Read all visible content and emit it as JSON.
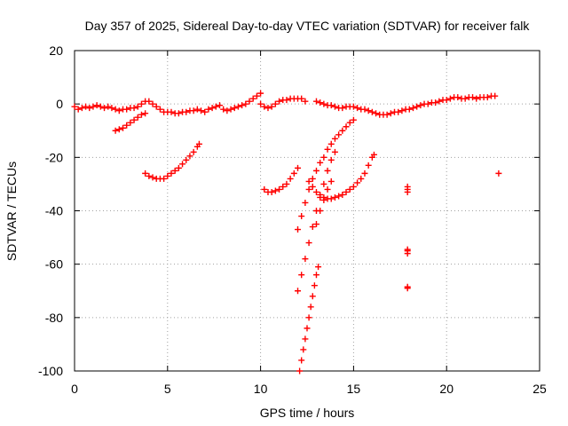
{
  "chart_data": {
    "type": "scatter",
    "title": "Day 357 of 2025, Sidereal Day-to-day VTEC variation (SDTVAR) for receiver falk",
    "xlabel": "GPS time / hours",
    "ylabel": "SDTVAR / TECUs",
    "xlim": [
      0,
      25
    ],
    "ylim": [
      -100,
      20
    ],
    "xticks": [
      0,
      5,
      10,
      15,
      20,
      25
    ],
    "yticks": [
      -100,
      -80,
      -60,
      -40,
      -20,
      0,
      20
    ],
    "xtick_labels": [
      "0",
      "5",
      "10",
      "15",
      "20",
      "25"
    ],
    "ytick_labels": [
      "-100",
      "-80",
      "-60",
      "-40",
      "-20",
      "0",
      "20"
    ],
    "grid": true,
    "marker": "+",
    "color": "#ff0000",
    "series": [
      {
        "values": [
          [
            0.0,
            -1
          ],
          [
            0.2,
            -2
          ],
          [
            0.4,
            -1.5
          ],
          [
            0.6,
            -1
          ],
          [
            0.8,
            -1.5
          ],
          [
            1.0,
            -1
          ],
          [
            1.2,
            -0.5
          ],
          [
            1.4,
            -1
          ],
          [
            1.6,
            -1.5
          ],
          [
            1.8,
            -1
          ],
          [
            2.0,
            -1.5
          ],
          [
            2.2,
            -2
          ],
          [
            2.4,
            -2.5
          ],
          [
            2.6,
            -2
          ],
          [
            2.8,
            -2
          ],
          [
            3.0,
            -1.5
          ],
          [
            3.2,
            -1.5
          ],
          [
            3.4,
            -1
          ],
          [
            3.6,
            0
          ],
          [
            3.8,
            1
          ],
          [
            4.0,
            1
          ],
          [
            4.2,
            0
          ],
          [
            4.4,
            -1
          ],
          [
            4.6,
            -2
          ],
          [
            4.8,
            -3
          ],
          [
            5.0,
            -3
          ],
          [
            5.2,
            -3
          ],
          [
            5.4,
            -3.5
          ],
          [
            5.6,
            -3.5
          ],
          [
            5.8,
            -3
          ],
          [
            6.0,
            -3
          ],
          [
            6.2,
            -2.5
          ],
          [
            6.4,
            -2.5
          ],
          [
            6.6,
            -2
          ],
          [
            6.8,
            -2.5
          ],
          [
            7.0,
            -3
          ],
          [
            7.2,
            -2
          ],
          [
            7.4,
            -1.5
          ],
          [
            7.6,
            -1
          ],
          [
            7.8,
            -0.5
          ],
          [
            8.0,
            -2
          ],
          [
            8.2,
            -2.5
          ],
          [
            8.4,
            -2
          ],
          [
            8.6,
            -1.5
          ],
          [
            8.8,
            -1
          ],
          [
            9.0,
            -0.5
          ],
          [
            9.2,
            0
          ],
          [
            9.4,
            1
          ],
          [
            9.6,
            2
          ],
          [
            9.8,
            3
          ],
          [
            10.0,
            4
          ],
          [
            10.0,
            0
          ],
          [
            10.2,
            -1
          ],
          [
            10.4,
            -1.5
          ],
          [
            10.6,
            -1
          ],
          [
            10.8,
            0
          ],
          [
            11.0,
            1
          ],
          [
            11.2,
            1.5
          ],
          [
            11.4,
            1.5
          ],
          [
            11.6,
            2
          ],
          [
            11.8,
            2
          ],
          [
            12.0,
            2
          ],
          [
            12.2,
            2
          ],
          [
            12.4,
            1
          ],
          [
            13.0,
            1
          ],
          [
            13.2,
            0.5
          ],
          [
            13.4,
            0
          ],
          [
            13.6,
            -0.5
          ],
          [
            13.8,
            -0.5
          ],
          [
            14.0,
            -1
          ],
          [
            14.2,
            -1.5
          ],
          [
            14.4,
            -1.5
          ],
          [
            14.6,
            -1
          ],
          [
            14.8,
            -1
          ],
          [
            15.0,
            -1
          ],
          [
            15.2,
            -1.5
          ],
          [
            15.4,
            -2
          ],
          [
            15.6,
            -2
          ],
          [
            15.8,
            -2.5
          ],
          [
            16.0,
            -3
          ],
          [
            16.2,
            -3.5
          ],
          [
            16.4,
            -4
          ],
          [
            16.6,
            -4
          ],
          [
            16.8,
            -4
          ],
          [
            17.0,
            -3.5
          ],
          [
            17.2,
            -3
          ],
          [
            17.4,
            -3
          ],
          [
            17.6,
            -2.5
          ],
          [
            17.8,
            -2
          ],
          [
            18.0,
            -2
          ],
          [
            18.2,
            -1.5
          ],
          [
            18.4,
            -1
          ],
          [
            18.6,
            -0.5
          ],
          [
            18.8,
            0
          ],
          [
            19.0,
            0
          ],
          [
            19.2,
            0.5
          ],
          [
            19.4,
            0.5
          ],
          [
            19.6,
            1
          ],
          [
            19.8,
            1.5
          ],
          [
            20.0,
            1.5
          ],
          [
            20.2,
            2
          ],
          [
            20.4,
            2.5
          ],
          [
            20.6,
            2.5
          ],
          [
            20.8,
            2
          ],
          [
            21.0,
            2
          ],
          [
            21.2,
            2.5
          ],
          [
            21.4,
            2.5
          ],
          [
            21.6,
            2
          ],
          [
            21.8,
            2.5
          ],
          [
            22.0,
            2.5
          ],
          [
            22.2,
            2.5
          ],
          [
            22.4,
            3
          ],
          [
            22.6,
            3
          ]
        ]
      },
      {
        "values": [
          [
            2.2,
            -10
          ],
          [
            2.4,
            -9.5
          ],
          [
            2.6,
            -9
          ],
          [
            2.8,
            -8
          ],
          [
            3.0,
            -7
          ],
          [
            3.2,
            -6
          ],
          [
            3.4,
            -5
          ],
          [
            3.6,
            -4
          ],
          [
            3.8,
            -3.5
          ]
        ]
      },
      {
        "values": [
          [
            3.8,
            -26
          ],
          [
            4.0,
            -27
          ],
          [
            4.2,
            -27.5
          ],
          [
            4.4,
            -28
          ],
          [
            4.6,
            -28
          ],
          [
            4.8,
            -28
          ],
          [
            5.0,
            -27
          ],
          [
            5.2,
            -26
          ],
          [
            5.4,
            -25
          ],
          [
            5.6,
            -24
          ],
          [
            5.8,
            -22.5
          ],
          [
            6.0,
            -21
          ],
          [
            6.2,
            -19.5
          ],
          [
            6.4,
            -18
          ],
          [
            6.6,
            -16
          ],
          [
            6.7,
            -15
          ]
        ]
      },
      {
        "values": [
          [
            10.2,
            -32
          ],
          [
            10.4,
            -33
          ],
          [
            10.6,
            -33
          ],
          [
            10.8,
            -32.5
          ],
          [
            11.0,
            -32
          ],
          [
            11.2,
            -31
          ],
          [
            11.4,
            -30
          ],
          [
            11.6,
            -28
          ],
          [
            11.8,
            -26
          ],
          [
            12.0,
            -24
          ]
        ]
      },
      {
        "values": [
          [
            12.0,
            -47
          ],
          [
            12.2,
            -42
          ],
          [
            12.4,
            -37
          ],
          [
            12.6,
            -32
          ],
          [
            12.8,
            -28
          ],
          [
            13.0,
            -25
          ],
          [
            13.2,
            -22
          ],
          [
            13.4,
            -20
          ],
          [
            13.6,
            -17
          ],
          [
            13.8,
            -15
          ],
          [
            14.0,
            -13
          ],
          [
            14.2,
            -11.5
          ],
          [
            14.4,
            -10
          ],
          [
            14.6,
            -8.5
          ],
          [
            14.8,
            -7
          ],
          [
            15.0,
            -6
          ]
        ]
      },
      {
        "values": [
          [
            12.0,
            -70
          ],
          [
            12.2,
            -64
          ],
          [
            12.4,
            -58
          ],
          [
            12.6,
            -52
          ],
          [
            12.8,
            -46
          ],
          [
            13.0,
            -40
          ],
          [
            13.2,
            -35
          ],
          [
            13.4,
            -30
          ],
          [
            13.6,
            -25
          ],
          [
            13.8,
            -21
          ],
          [
            14.0,
            -18
          ]
        ]
      },
      {
        "values": [
          [
            12.6,
            -29
          ],
          [
            12.8,
            -31
          ],
          [
            13.0,
            -33
          ],
          [
            13.2,
            -34
          ],
          [
            13.4,
            -35
          ],
          [
            13.6,
            -35.5
          ],
          [
            13.8,
            -35.5
          ],
          [
            14.0,
            -35
          ],
          [
            14.2,
            -34.5
          ],
          [
            14.4,
            -34
          ],
          [
            14.6,
            -33
          ],
          [
            14.8,
            -32
          ],
          [
            15.0,
            -31
          ],
          [
            15.2,
            -29.5
          ],
          [
            15.4,
            -28
          ],
          [
            15.6,
            -26
          ],
          [
            15.8,
            -23
          ],
          [
            16.0,
            -20
          ],
          [
            16.1,
            -19
          ]
        ]
      },
      {
        "values": [
          [
            12.1,
            -100
          ],
          [
            12.2,
            -96
          ],
          [
            12.3,
            -92
          ],
          [
            12.4,
            -88
          ],
          [
            12.5,
            -84
          ],
          [
            12.6,
            -80
          ],
          [
            12.7,
            -76
          ],
          [
            12.8,
            -72
          ],
          [
            12.9,
            -68
          ],
          [
            13.0,
            -64
          ],
          [
            13.1,
            -61
          ]
        ]
      },
      {
        "values": [
          [
            13.0,
            -45
          ],
          [
            13.2,
            -40
          ],
          [
            13.4,
            -36
          ],
          [
            13.6,
            -32
          ],
          [
            13.8,
            -29
          ]
        ]
      },
      {
        "values": [
          [
            17.9,
            -32
          ],
          [
            17.9,
            -33
          ],
          [
            17.9,
            -31
          ],
          [
            17.9,
            -55
          ],
          [
            17.9,
            -56
          ],
          [
            17.9,
            -54.5
          ],
          [
            17.9,
            -69
          ],
          [
            17.9,
            -68.5
          ],
          [
            22.8,
            -26
          ]
        ]
      }
    ]
  }
}
